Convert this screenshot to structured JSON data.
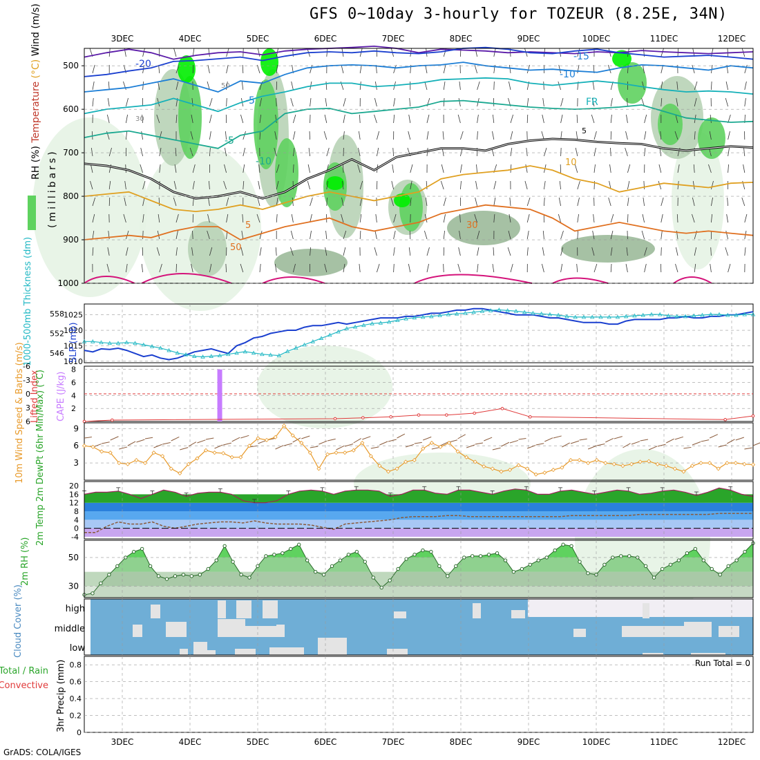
{
  "title": "GFS 0~10day 3-hourly for TOZEUR (8.25E, 34N)",
  "credit": "GrADS: COLA/IGES",
  "colors": {
    "rh_light": "#e6f3e4",
    "rh_mid": "#b8d3b6",
    "rh_dark": "#9cba9a",
    "rh_green": "#5fd25f",
    "rh_bright": "#00ee00",
    "slp": "#1a3fcf",
    "thickness": "#22b8c4",
    "cape": "#c77cff",
    "lifted": "#e03a3a",
    "wind10": "#e89a2a",
    "barb": "#8a5a3a",
    "temp_band": "#2aa52a",
    "dew": "#8a5a3a",
    "cloud": "#6faed6",
    "cloud_none": "#f1eef4"
  },
  "chart_data": [
    {
      "type": "heatmap",
      "panel": "profile",
      "ylabel_parts": [
        "Wind (m/s)",
        "Temperature (°C)",
        "RH (%)"
      ],
      "ylabel_units": "millibars",
      "y_ticks": [
        500,
        600,
        700,
        800,
        900,
        1000
      ],
      "x_ticks": [
        "3DEC",
        "4DEC",
        "5DEC",
        "6DEC",
        "7DEC",
        "8DEC",
        "9DEC",
        "10DEC",
        "11DEC",
        "12DEC"
      ],
      "contour_labels": [
        "-20",
        "-15",
        "-10",
        "-5",
        "FR",
        "-5",
        "-10",
        "5",
        "10",
        "5",
        "30",
        "50",
        "30",
        "50"
      ],
      "isotherms": [
        {
          "name": "-20",
          "color": "#5a1aa8",
          "p": [
            480,
            470,
            462,
            470,
            485,
            476,
            470,
            468,
            475,
            466,
            462,
            460,
            458,
            455,
            460,
            470,
            462,
            464,
            466,
            470,
            468,
            470,
            472,
            468,
            470,
            465,
            468,
            470,
            472,
            470,
            468
          ]
        },
        {
          "name": "-15",
          "color": "#1a3fcf",
          "p": [
            525,
            520,
            512,
            505,
            490,
            488,
            484,
            480,
            488,
            478,
            470,
            468,
            470,
            466,
            470,
            472,
            468,
            460,
            458,
            462,
            470,
            472,
            466,
            462,
            470,
            475,
            480,
            478,
            476,
            480,
            485
          ]
        },
        {
          "name": "-10",
          "color": "#1c7ed6",
          "p": [
            560,
            555,
            550,
            540,
            530,
            545,
            560,
            535,
            540,
            520,
            505,
            500,
            498,
            500,
            505,
            500,
            498,
            492,
            500,
            505,
            510,
            508,
            512,
            515,
            505,
            498,
            500,
            505,
            510,
            500,
            505
          ]
        },
        {
          "name": "-5",
          "color": "#14b0b8",
          "p": [
            610,
            600,
            595,
            590,
            575,
            590,
            605,
            585,
            570,
            560,
            548,
            540,
            540,
            548,
            545,
            540,
            532,
            530,
            528,
            530,
            540,
            545,
            540,
            535,
            540,
            548,
            555,
            560,
            558,
            560,
            565
          ]
        },
        {
          "name": "0",
          "color": "#1aa890",
          "p": [
            665,
            655,
            650,
            660,
            670,
            680,
            690,
            660,
            650,
            610,
            600,
            598,
            610,
            605,
            600,
            595,
            582,
            580,
            585,
            590,
            595,
            598,
            600,
            598,
            595,
            590,
            605,
            620,
            625,
            630,
            628
          ]
        },
        {
          "name": "FR",
          "color": "#000000",
          "p": [
            725,
            730,
            740,
            760,
            790,
            805,
            800,
            790,
            805,
            790,
            760,
            740,
            715,
            740,
            710,
            700,
            690,
            690,
            695,
            680,
            672,
            668,
            670,
            675,
            678,
            680,
            690,
            695,
            690,
            685,
            688
          ]
        },
        {
          "name": "5",
          "color": "#e0a020",
          "p": [
            800,
            795,
            790,
            810,
            830,
            835,
            830,
            820,
            830,
            815,
            800,
            790,
            800,
            810,
            800,
            790,
            760,
            750,
            745,
            740,
            730,
            740,
            760,
            770,
            790,
            780,
            770,
            775,
            780,
            770,
            768
          ]
        },
        {
          "name": "10",
          "color": "#e07020",
          "p": [
            900,
            895,
            890,
            895,
            880,
            870,
            870,
            900,
            885,
            870,
            860,
            850,
            870,
            880,
            870,
            860,
            840,
            830,
            820,
            825,
            830,
            850,
            880,
            870,
            860,
            870,
            880,
            885,
            880,
            885,
            890
          ]
        }
      ]
    },
    {
      "type": "line",
      "panel": "slp_thickness",
      "ylabel_left": "1000-500mb Thickness (dm)",
      "ylabel_right": "SLP (mb)",
      "left_ticks": [
        546,
        552,
        558
      ],
      "right_ticks": [
        1010,
        1015,
        1020,
        1025
      ],
      "series": [
        {
          "name": "SLP",
          "values": [
            1013.5,
            1013,
            1014,
            1013.8,
            1014.2,
            1013.5,
            1012.5,
            1011.5,
            1012,
            1011,
            1010.5,
            1011,
            1012,
            1013,
            1013.5,
            1014,
            1013.2,
            1012.5,
            1015,
            1016,
            1017.5,
            1018,
            1019,
            1019.5,
            1020,
            1020,
            1021,
            1021.5,
            1021.5,
            1022,
            1022.5,
            1022,
            1022.5,
            1023,
            1023.5,
            1024,
            1024,
            1024,
            1024.5,
            1024.5,
            1025,
            1025.5,
            1025.5,
            1026,
            1026.5,
            1026.5,
            1027,
            1027,
            1026.5,
            1026,
            1025.5,
            1025,
            1025,
            1025,
            1024.5,
            1024,
            1024,
            1023.5,
            1023,
            1022.5,
            1022.5,
            1022.5,
            1022,
            1022,
            1023,
            1023.5,
            1023.5,
            1023.5,
            1023.5,
            1024,
            1024,
            1024.5,
            1024,
            1024,
            1024.5,
            1024.5,
            1025,
            1025,
            1025.5,
            1026
          ]
        },
        {
          "name": "Thickness",
          "values": [
            549.5,
            549.5,
            549.2,
            549,
            549,
            549.2,
            549,
            548.5,
            548,
            547.5,
            546.8,
            546,
            545.5,
            545,
            544.8,
            545,
            545.2,
            545.6,
            546,
            546.4,
            546,
            545.6,
            545.4,
            545.2,
            546.5,
            547.5,
            548.5,
            549.5,
            550.5,
            551.5,
            552.5,
            553.5,
            554,
            554.5,
            555,
            555.2,
            555.5,
            556,
            556.5,
            556.8,
            557,
            557.2,
            557.5,
            557.8,
            558,
            558.2,
            558.5,
            558.8,
            559,
            559.2,
            559,
            558.8,
            558.5,
            558.2,
            558,
            557.8,
            557.6,
            557.2,
            557,
            557,
            557,
            557,
            557,
            557,
            557.2,
            557.4,
            557.6,
            557.8,
            557.8,
            557.4,
            557.2,
            557.2,
            557.4,
            557.6,
            557.8,
            557.8,
            557.6,
            557.6,
            557.8,
            557.8
          ]
        }
      ]
    },
    {
      "type": "bar",
      "panel": "cape_lifted",
      "ylabel_left": "Lifted Index",
      "ylabel_right": "CAPE (J/kg)",
      "left_ticks": [
        "-6",
        "-3",
        "0",
        "3",
        "6"
      ],
      "right_ticks": [
        "2",
        "4",
        "6",
        "8"
      ],
      "cape_bar": {
        "x_index": 16,
        "value": 8
      },
      "lifted_index": [
        6,
        5.7,
        null,
        null,
        null,
        null,
        null,
        null,
        null,
        5.4,
        5.2,
        5,
        4.6,
        4.6,
        4.2,
        3.2,
        5,
        null,
        null,
        null,
        null,
        null,
        null,
        5.6,
        4.8
      ]
    },
    {
      "type": "line",
      "panel": "wind10",
      "ylabel": "10m Wind Speed & Barbs (m/s)",
      "y_ticks": [
        3,
        6,
        9
      ],
      "series": [
        {
          "name": "10m Wind Speed",
          "values": [
            6,
            5.8,
            5,
            4.8,
            3,
            2.8,
            3.5,
            3,
            4.8,
            4.2,
            2,
            1.2,
            2.8,
            3.8,
            5.2,
            4.8,
            4.7,
            4,
            4,
            6,
            7.3,
            7,
            7.5,
            9.5,
            7.8,
            6.5,
            4.8,
            2,
            4.5,
            4.8,
            4.8,
            5.2,
            6.5,
            4.2,
            2.5,
            1.5,
            2,
            3.2,
            3.5,
            5.5,
            6.5,
            5.8,
            6.5,
            5,
            4,
            3.2,
            2.4,
            2,
            1.5,
            1.8,
            2.6,
            2,
            1,
            1.3,
            1.8,
            2.2,
            3.5,
            3.5,
            3,
            3.5,
            3,
            2.8,
            2.5,
            2.8,
            3.2,
            3.3,
            2.8,
            2.5,
            2,
            1.5,
            2.5,
            3,
            3,
            2,
            3,
            3,
            2.8,
            2.7
          ]
        }
      ]
    },
    {
      "type": "area",
      "panel": "temp2m",
      "ylabel": "2m Temp 2m DewPt (6hr Min/Max) (°C)",
      "y_ticks": [
        -4,
        0,
        4,
        8,
        12,
        16,
        20
      ],
      "series": [
        {
          "name": "2m Temp",
          "values": [
            16,
            17,
            17,
            17.5,
            16,
            14,
            16,
            18,
            17,
            15,
            16.5,
            17,
            17,
            16,
            13,
            12,
            12,
            13,
            16,
            17.5,
            18,
            17.5,
            16,
            17.5,
            18,
            18,
            17.5,
            15,
            16,
            18,
            18,
            16.5,
            16,
            18,
            18,
            17,
            16,
            17.5,
            18.5,
            18,
            16,
            16,
            17.5,
            18,
            17,
            16,
            17,
            18,
            17.5,
            16,
            16.5,
            17.5,
            18,
            17,
            15.5,
            17,
            19,
            18,
            16,
            15
          ]
        },
        {
          "name": "2m DewPt",
          "values": [
            -2,
            -2,
            1,
            3,
            2,
            2,
            3,
            1,
            0,
            1,
            2,
            2.5,
            3,
            3,
            2.5,
            3.5,
            2.5,
            2,
            2,
            2,
            1.5,
            0.5,
            -0.5,
            2,
            2.5,
            3,
            3.5,
            4,
            5,
            5.5,
            5.5,
            5.5,
            6,
            6,
            5.5,
            5.5,
            5.5,
            5.5,
            5.5,
            5.5,
            5.5,
            5.5,
            5.5,
            6,
            6,
            6,
            6,
            6,
            6,
            6.5,
            6.5,
            6.5,
            6.5,
            6.5,
            6.5,
            6.5,
            7,
            7,
            7,
            7
          ]
        }
      ]
    },
    {
      "type": "area",
      "panel": "rh2m",
      "ylabel": "2m RH (%)",
      "y_ticks": [
        30,
        50
      ],
      "series": [
        {
          "name": "2m RH",
          "values": [
            24,
            25,
            32,
            38,
            44,
            50,
            54,
            56,
            44,
            37,
            35,
            37,
            38,
            37,
            38,
            42,
            48,
            58,
            47,
            38,
            36,
            44,
            51,
            52,
            53,
            56,
            59,
            48,
            40,
            38,
            44,
            48,
            52,
            54,
            47,
            36,
            29,
            34,
            42,
            49,
            52,
            55,
            54,
            44,
            37,
            44,
            50,
            51,
            51,
            52,
            53,
            48,
            40,
            42,
            45,
            48,
            50,
            55,
            59,
            58,
            47,
            39,
            38,
            45,
            50,
            51,
            51,
            50,
            44,
            36,
            42,
            45,
            48,
            53,
            56,
            48,
            42,
            38,
            44,
            48,
            54,
            60
          ]
        }
      ]
    },
    {
      "type": "bar",
      "panel": "cloud",
      "ylabel": "Cloud Cover (%)",
      "y_ticks": [
        "high",
        "middle",
        "low"
      ],
      "clear_spans": [
        {
          "level": "high",
          "from": 0.66,
          "to": 1.0
        }
      ]
    },
    {
      "type": "bar",
      "panel": "precip",
      "ylabel": "3hr Precip (mm)",
      "ylabel_left_parts": [
        "Total / Rain",
        "Convective"
      ],
      "y_ticks": [
        "0",
        "0.2",
        "0.4",
        "0.6",
        "0.8"
      ],
      "run_total": "Run Total = 0"
    }
  ]
}
